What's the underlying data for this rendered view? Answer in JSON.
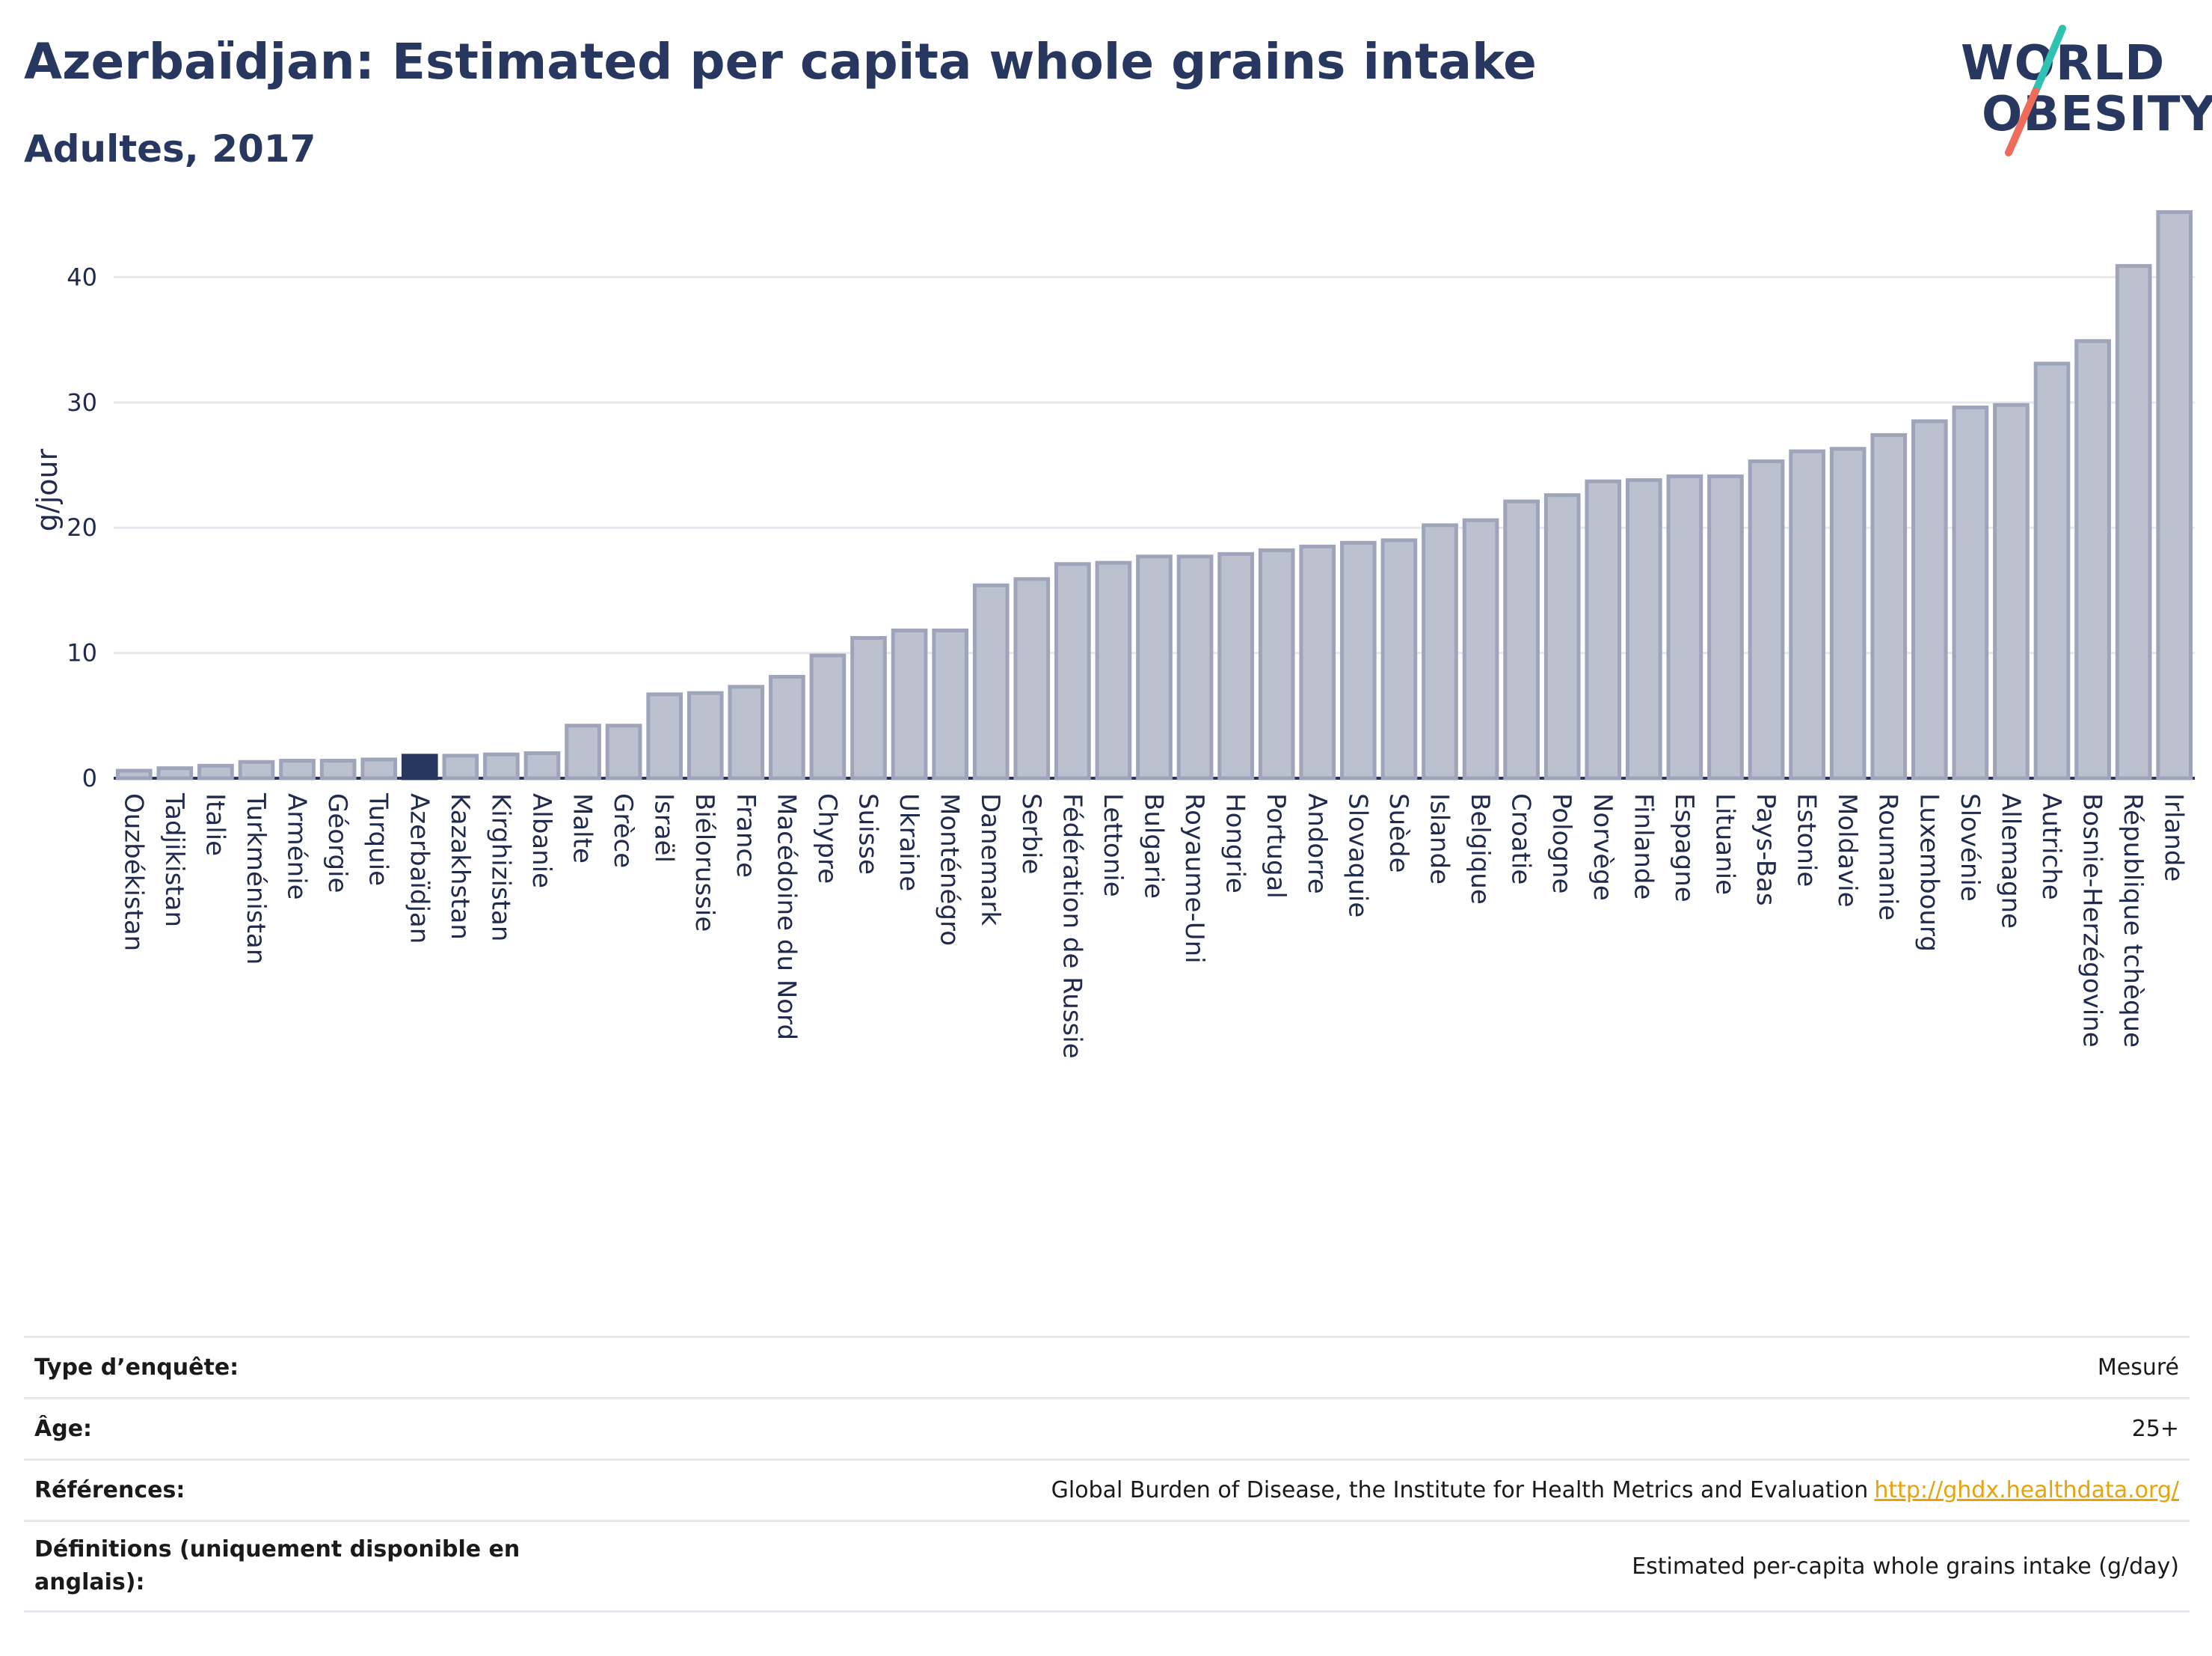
{
  "header": {
    "title": "Azerbaïdjan: Estimated per capita whole grains intake",
    "subtitle": "Adultes, 2017"
  },
  "logo": {
    "line1": "WORLD",
    "line2": "OBESITY",
    "colors": {
      "text": "#27375f",
      "slash_top": "#2fc1b1",
      "slash_bottom": "#ef6b5a"
    }
  },
  "chart_data": {
    "type": "bar",
    "ylabel": "g/jour",
    "ylim": [
      0,
      46
    ],
    "yticks": [
      0,
      10,
      20,
      30,
      40
    ],
    "grid": true,
    "highlight": "Azerbaïdjan",
    "colors": {
      "bar": "#bcc1cf",
      "bar_edge": "#9ea4b9",
      "highlight": "#27375f"
    },
    "categories": [
      "Ouzbékistan",
      "Tadjikistan",
      "Italie",
      "Turkménistan",
      "Arménie",
      "Géorgie",
      "Turquie",
      "Azerbaïdjan",
      "Kazakhstan",
      "Kirghizistan",
      "Albanie",
      "Malte",
      "Grèce",
      "Israël",
      "Biélorussie",
      "France",
      "Macédoine du Nord",
      "Chypre",
      "Suisse",
      "Ukraine",
      "Monténégro",
      "Danemark",
      "Serbie",
      "Fédération de Russie",
      "Lettonie",
      "Bulgarie",
      "Royaume-Uni",
      "Hongrie",
      "Portugal",
      "Andorre",
      "Slovaquie",
      "Suède",
      "Islande",
      "Belgique",
      "Croatie",
      "Pologne",
      "Norvège",
      "Finlande",
      "Espagne",
      "Lituanie",
      "Pays-Bas",
      "Estonie",
      "Moldavie",
      "Roumanie",
      "Luxembourg",
      "Slovénie",
      "Allemagne",
      "Autriche",
      "Bosnie-Herzégovine",
      "République tchèque",
      "Irlande"
    ],
    "values": [
      0.6,
      0.8,
      1.0,
      1.3,
      1.4,
      1.4,
      1.5,
      1.8,
      1.8,
      1.9,
      2.0,
      4.2,
      4.2,
      6.7,
      6.8,
      7.3,
      8.1,
      9.8,
      11.2,
      11.8,
      11.8,
      15.4,
      15.9,
      17.1,
      17.2,
      17.7,
      17.7,
      17.9,
      18.2,
      18.5,
      18.8,
      19.0,
      20.2,
      20.6,
      22.1,
      22.6,
      23.7,
      23.8,
      24.1,
      24.1,
      25.3,
      26.1,
      26.3,
      27.4,
      28.5,
      29.6,
      29.8,
      33.1,
      34.9,
      40.9,
      45.2
    ]
  },
  "info": {
    "rows": [
      {
        "key": "Type d’enquête:",
        "value": "Mesuré",
        "link": ""
      },
      {
        "key": "Âge:",
        "value": "25+",
        "link": ""
      },
      {
        "key": "Références:",
        "value": "Global Burden of Disease, the Institute for Health Metrics and Evaluation",
        "link": "http://ghdx.healthdata.org/"
      },
      {
        "key": "Définitions (uniquement disponible en anglais):",
        "value": "Estimated per-capita whole grains intake (g/day)",
        "link": ""
      }
    ]
  }
}
